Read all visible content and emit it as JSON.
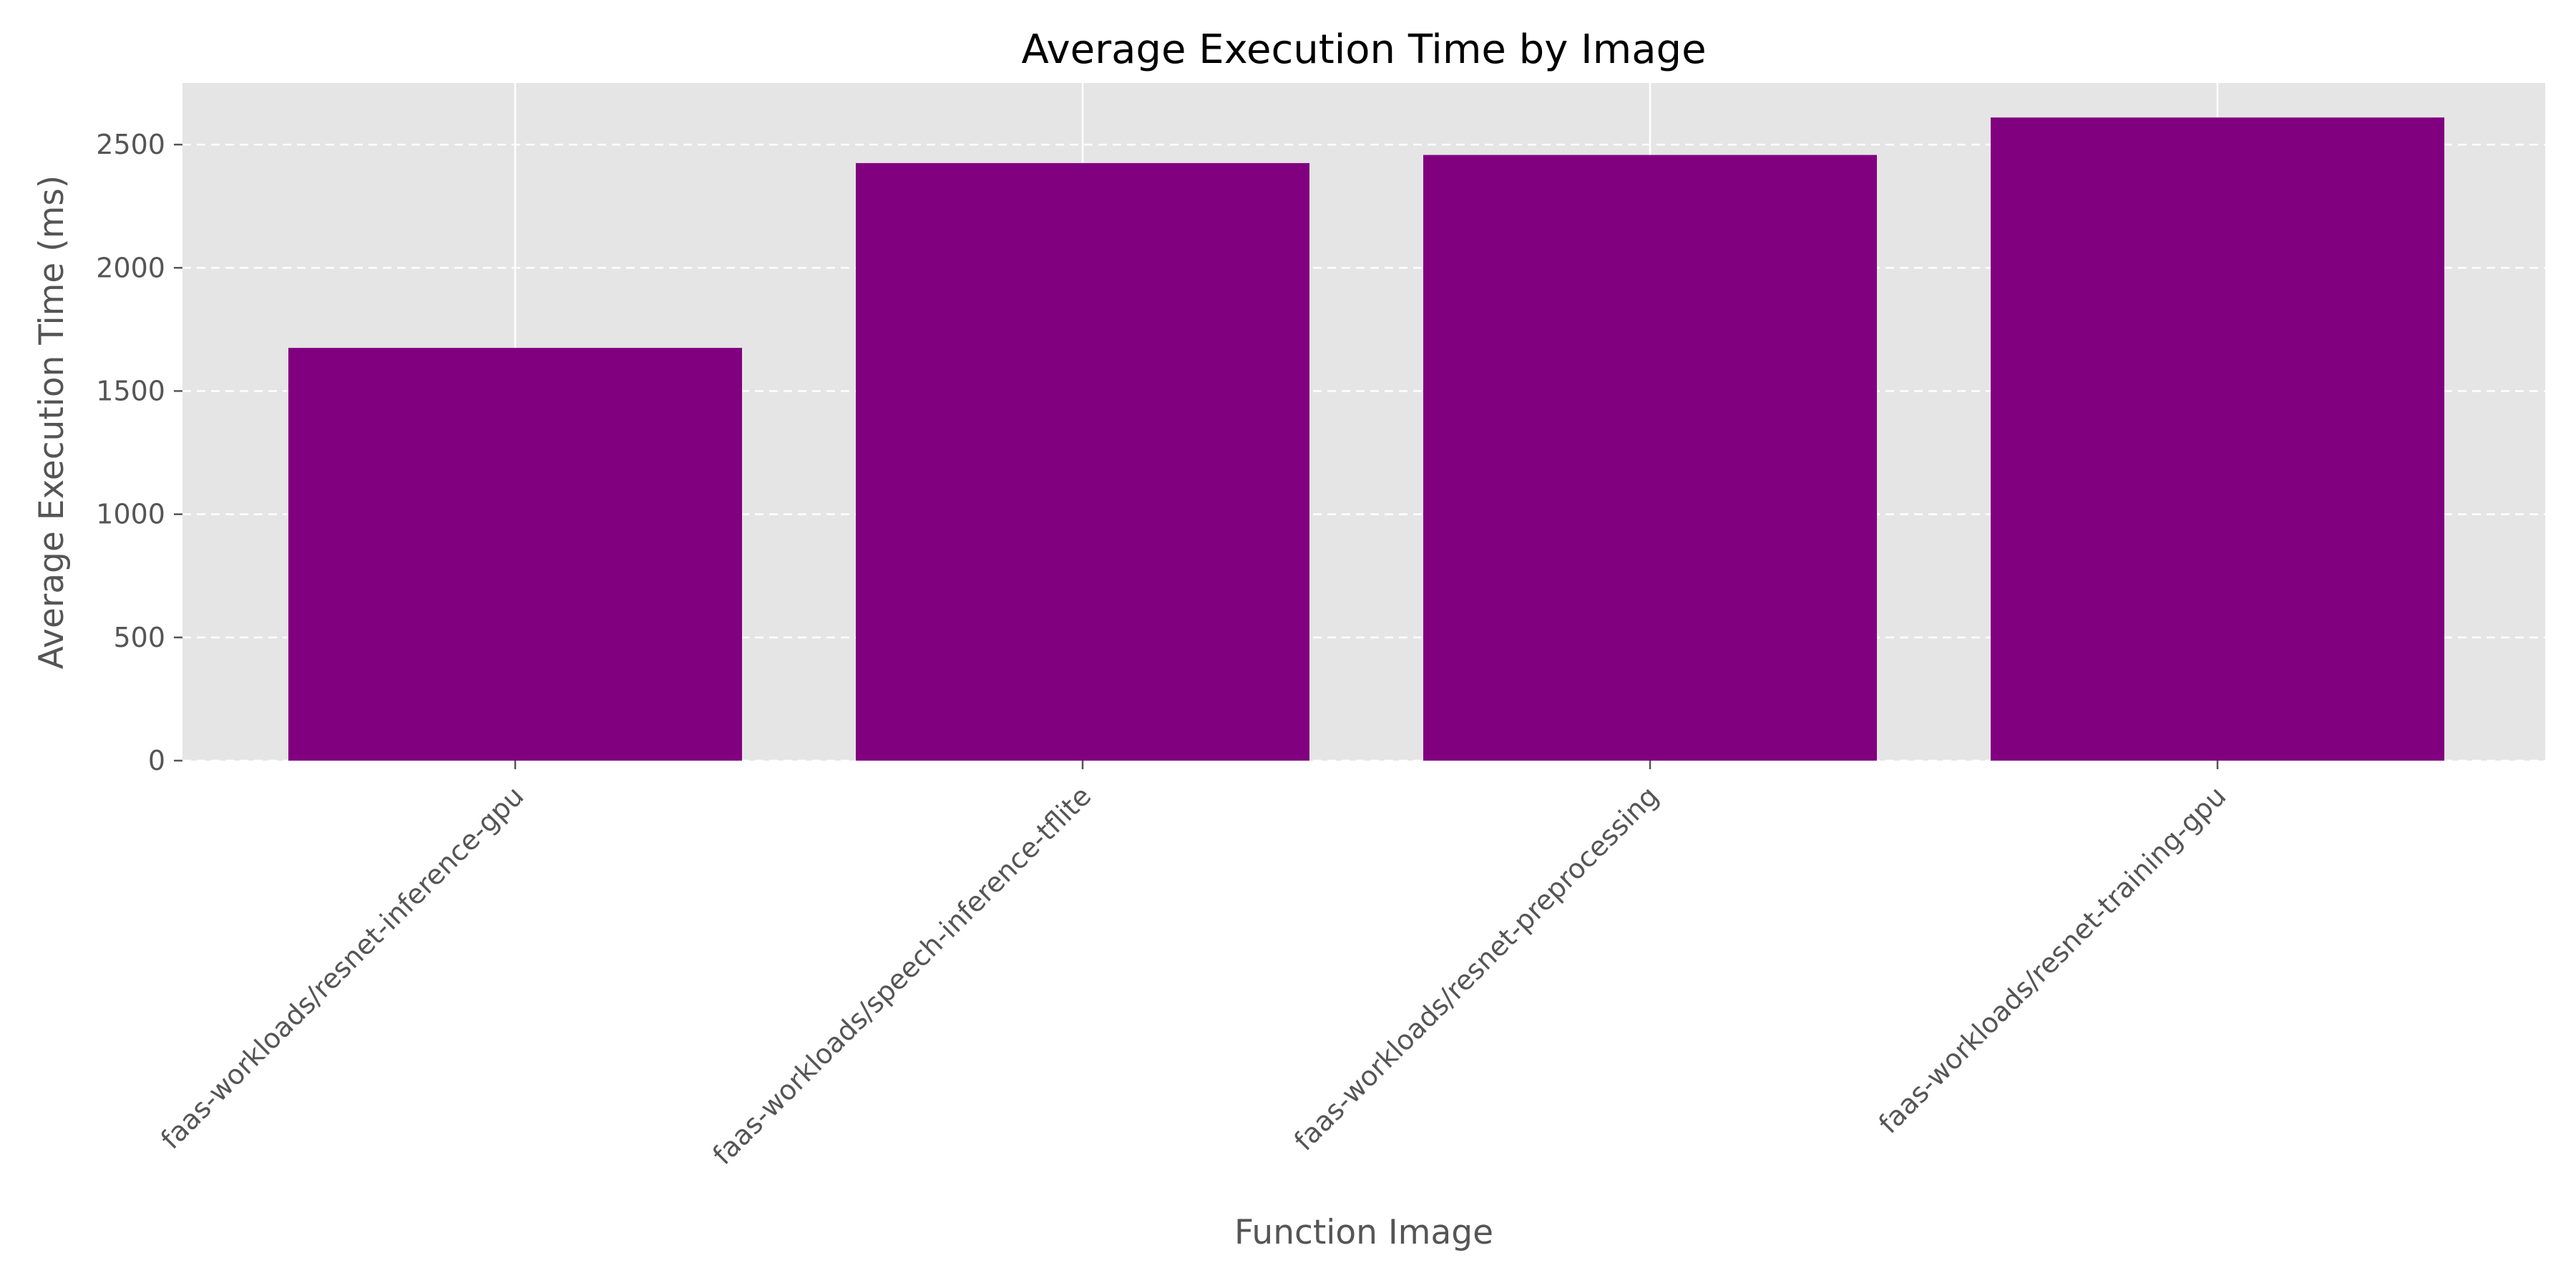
{
  "chart_data": {
    "type": "bar",
    "title": "Average Execution Time by Image",
    "xlabel": "Function Image",
    "ylabel": "Average Execution Time (ms)",
    "categories": [
      "faas-workloads/resnet-inference-gpu",
      "faas-workloads/speech-inference-tflite",
      "faas-workloads/resnet-preprocessing",
      "faas-workloads/resnet-training-gpu"
    ],
    "values": [
      1675,
      2425,
      2458,
      2610
    ],
    "ylim": [
      0,
      2750
    ],
    "yticks": [
      0,
      500,
      1000,
      1500,
      2000,
      2500
    ],
    "grid": true,
    "grid_style": "dashed",
    "bar_color": "#800080",
    "background_color": "#e5e5e5"
  }
}
